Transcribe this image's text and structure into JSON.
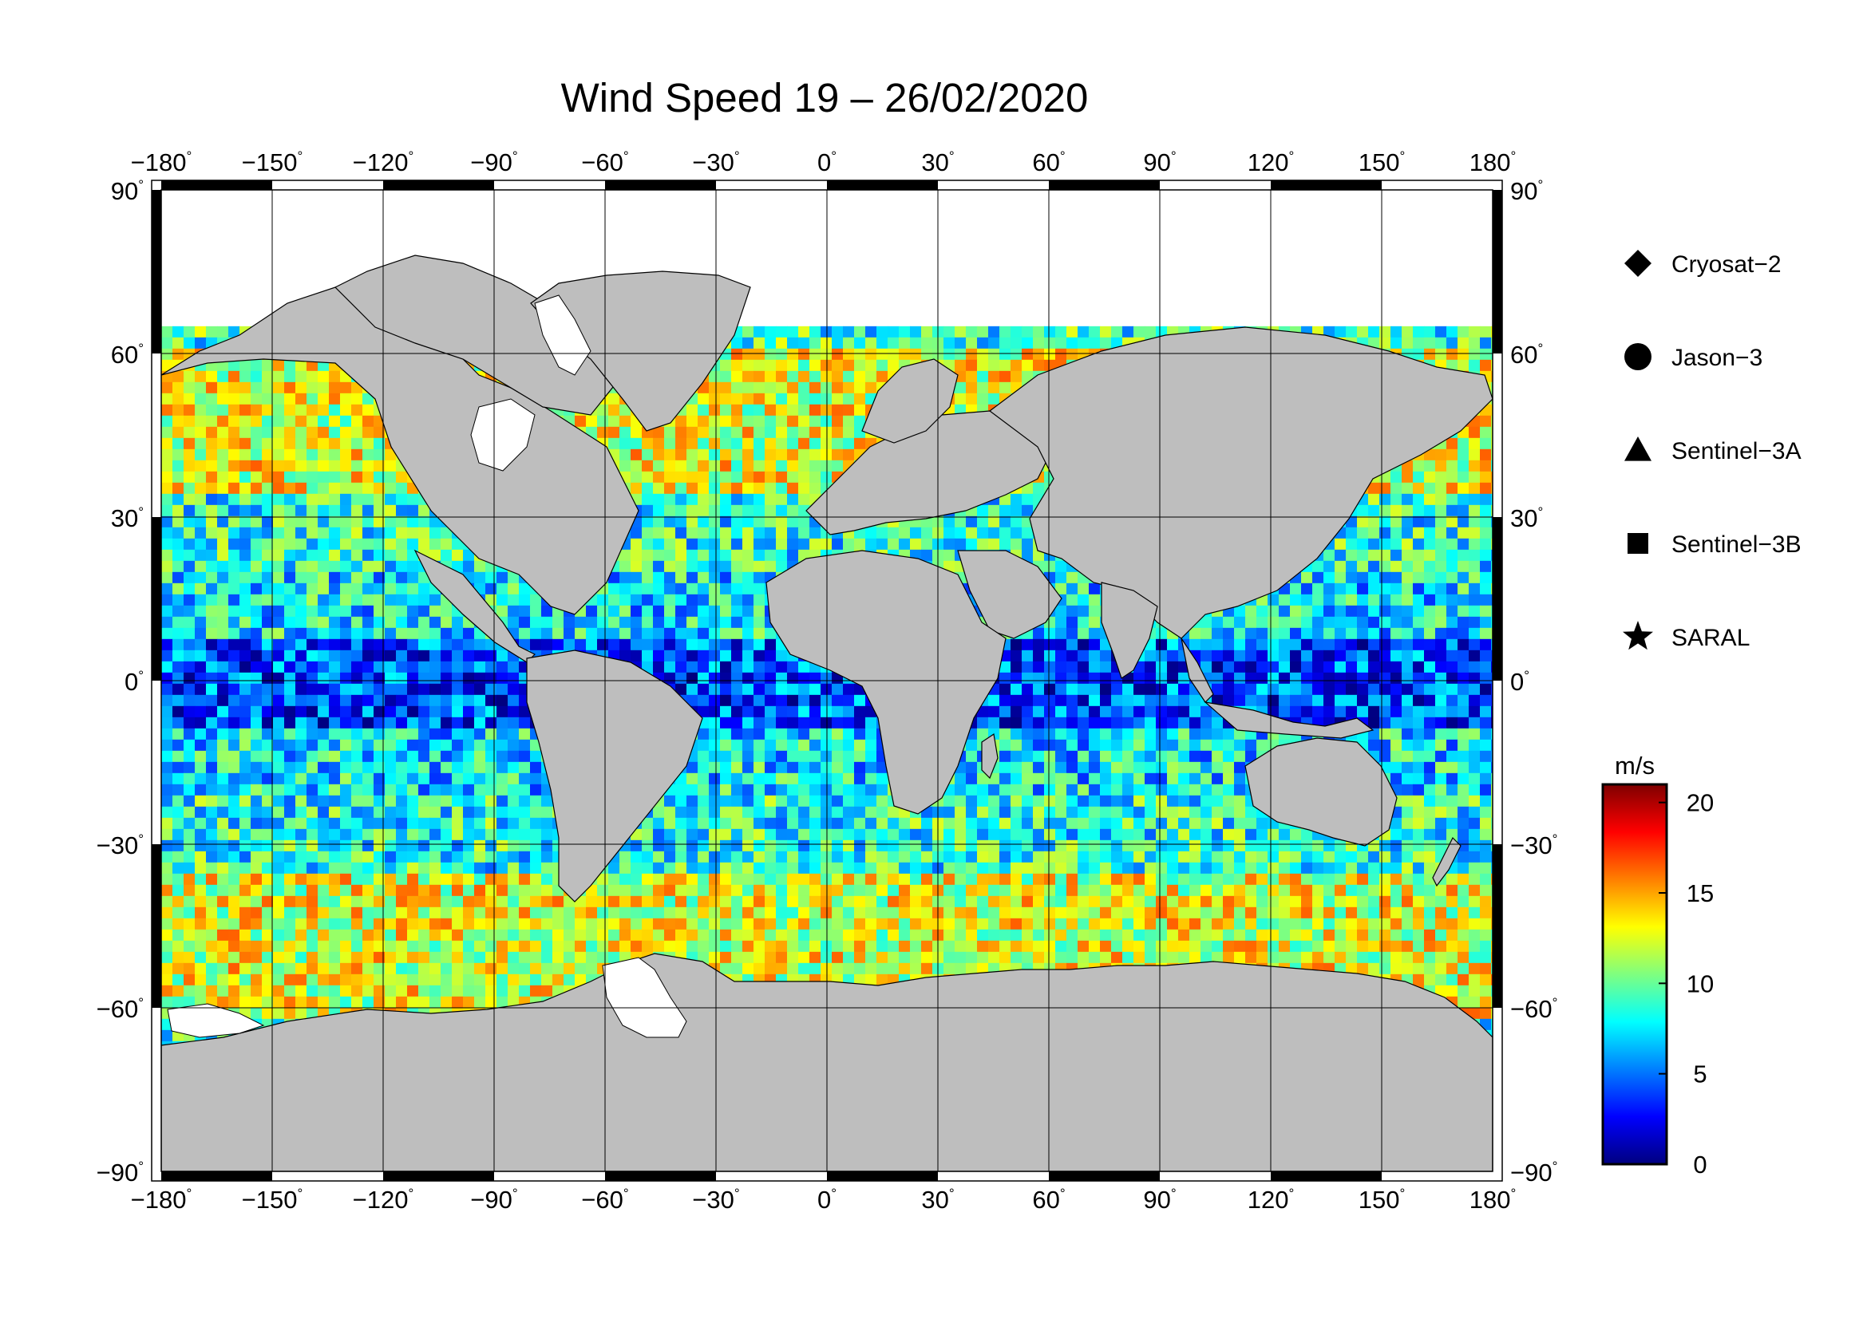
{
  "title": "Wind Speed 19 – 26/02/2020",
  "map": {
    "lon_ticks": [
      {
        "value": -180,
        "label": "−180"
      },
      {
        "value": -150,
        "label": "−150"
      },
      {
        "value": -120,
        "label": "−120"
      },
      {
        "value": -90,
        "label": "−90"
      },
      {
        "value": -60,
        "label": "−60"
      },
      {
        "value": -30,
        "label": "−30"
      },
      {
        "value": 0,
        "label": "0"
      },
      {
        "value": 30,
        "label": "30"
      },
      {
        "value": 60,
        "label": "60"
      },
      {
        "value": 90,
        "label": "90"
      },
      {
        "value": 120,
        "label": "120"
      },
      {
        "value": 150,
        "label": "150"
      },
      {
        "value": 180,
        "label": "180"
      }
    ],
    "lat_ticks": [
      {
        "value": 90,
        "label": "90"
      },
      {
        "value": 60,
        "label": "60"
      },
      {
        "value": 30,
        "label": "30"
      },
      {
        "value": 0,
        "label": "0"
      },
      {
        "value": -30,
        "label": "−30"
      },
      {
        "value": -60,
        "label": "−60"
      },
      {
        "value": -90,
        "label": "−90"
      }
    ],
    "degree_symbol": "°",
    "lon_range": [
      -180,
      180
    ],
    "lat_range": [
      -90,
      90
    ],
    "grid": true,
    "land_color": "#bebebe",
    "ice_color": "#ffffff"
  },
  "legend": {
    "items": [
      {
        "label": "Cryosat−2",
        "marker": "diamond"
      },
      {
        "label": "Jason−3",
        "marker": "circle"
      },
      {
        "label": "Sentinel−3A",
        "marker": "triangle"
      },
      {
        "label": "Sentinel−3B",
        "marker": "square"
      },
      {
        "label": "SARAL",
        "marker": "star"
      }
    ]
  },
  "colorbar": {
    "unit": "m/s",
    "min": 0,
    "max": 21,
    "ticks": [
      {
        "value": 0,
        "label": "0"
      },
      {
        "value": 5,
        "label": "5"
      },
      {
        "value": 10,
        "label": "10"
      },
      {
        "value": 15,
        "label": "15"
      },
      {
        "value": 20,
        "label": "20"
      }
    ],
    "colormap": [
      "#00007f",
      "#0000ff",
      "#007fff",
      "#00ffff",
      "#7fff7f",
      "#ffff00",
      "#ff7f00",
      "#ff0000",
      "#7f0000"
    ]
  }
}
